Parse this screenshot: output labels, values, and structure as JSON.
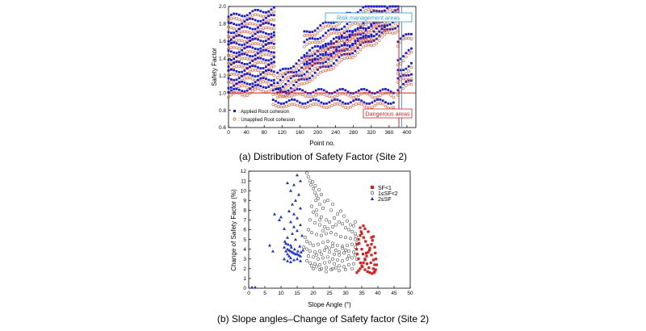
{
  "chart_data": [
    {
      "type": "scatter",
      "caption": "(a) Distribution of Safety Factor (Site 2)",
      "xlabel": "Point no.",
      "ylabel": "Safety Factor",
      "xlim": [
        0,
        420
      ],
      "ylim": [
        0.6,
        2.0
      ],
      "xticks": [
        "0",
        "40",
        "80",
        "120",
        "160",
        "200",
        "240",
        "280",
        "320",
        "360",
        "400"
      ],
      "yticks": [
        "0.6",
        "0.8",
        "1.0",
        "1.2",
        "1.4",
        "1.6",
        "1.8",
        "2.0"
      ],
      "legend_position": "bottom-left",
      "series": [
        {
          "name": ": Applied Root cohesion",
          "color": "#1a1acc",
          "marker": "filled-square"
        },
        {
          "name": ": Unapplied Root cohesion",
          "color": "#d9603b",
          "marker": "open-circle"
        }
      ],
      "annotations": [
        {
          "text": "Risk management areas",
          "color": "#2a9fd0"
        },
        {
          "text": "Dangerous areas",
          "color": "#d62020"
        }
      ],
      "reference_lines": [
        {
          "axis": "y",
          "value": 1.0,
          "color": "#d62020"
        },
        {
          "axis": "x",
          "value": 382,
          "color": "#d62020"
        },
        {
          "axis": "x",
          "value": 388,
          "color": "#2a9fd0"
        }
      ],
      "bands": [
        {
          "start": 0,
          "end": 105,
          "slope": 0.0009,
          "base": [
            1.88,
            1.79,
            1.71,
            1.62,
            1.55,
            1.47,
            1.4,
            1.32,
            1.24,
            1.16,
            1.08,
            1.01
          ]
        },
        {
          "start": 100,
          "end": 375,
          "slope": 0.0,
          "base": [
            1.02,
            0.9
          ]
        },
        {
          "start": 110,
          "end": 380,
          "slope": 0.003,
          "base": [
            0.98,
            1.06,
            1.14,
            1.22
          ]
        },
        {
          "start": 170,
          "end": 350,
          "slope": 0.0022,
          "base": [
            1.34,
            1.46,
            1.58,
            1.69
          ]
        },
        {
          "start": 380,
          "end": 415,
          "slope": 0.003,
          "base": [
            1.05,
            1.15,
            1.25,
            1.4,
            1.6
          ]
        }
      ]
    },
    {
      "type": "scatter",
      "caption": "(b) Slope angles–Change of Safety factor (Site 2)",
      "xlabel": "Slope Angle (°)",
      "ylabel": "Change of Safety Factor (%)",
      "xlim": [
        0,
        50
      ],
      "ylim": [
        0,
        12
      ],
      "xticks": [
        "0",
        "5",
        "10",
        "15",
        "20",
        "25",
        "30",
        "35",
        "40",
        "45",
        "50"
      ],
      "yticks": [
        "0",
        "1",
        "2",
        "3",
        "4",
        "5",
        "6",
        "7",
        "8",
        "9",
        "10",
        "11",
        "12"
      ],
      "legend_position": "top-right",
      "series": [
        {
          "name": "SF<1",
          "color": "#d62020",
          "marker": "filled-square"
        },
        {
          "name": "1≤SF<2",
          "color": "#555555",
          "marker": "open-circle"
        },
        {
          "name": "2≤SF",
          "color": "#1a2fd0",
          "marker": "filled-triangle"
        }
      ],
      "points_sf_lt1": [
        [
          33.5,
          1.6
        ],
        [
          34.0,
          1.8
        ],
        [
          34.5,
          2.0
        ],
        [
          35.0,
          2.3
        ],
        [
          35.5,
          2.6
        ],
        [
          36.0,
          2.9
        ],
        [
          36.5,
          3.3
        ],
        [
          37.0,
          3.7
        ],
        [
          37.5,
          4.1
        ],
        [
          38.0,
          4.5
        ],
        [
          38.3,
          4.9
        ],
        [
          38.6,
          5.3
        ],
        [
          39.0,
          4.2
        ],
        [
          39.2,
          3.6
        ],
        [
          39.4,
          3.0
        ],
        [
          39.6,
          2.4
        ],
        [
          39.3,
          1.9
        ],
        [
          38.8,
          1.6
        ],
        [
          38.2,
          1.5
        ],
        [
          37.5,
          1.6
        ],
        [
          36.8,
          1.7
        ],
        [
          36.0,
          1.9
        ],
        [
          35.2,
          2.2
        ],
        [
          34.6,
          2.6
        ],
        [
          34.0,
          3.0
        ],
        [
          33.6,
          3.5
        ],
        [
          33.4,
          4.0
        ],
        [
          33.6,
          4.5
        ],
        [
          34.0,
          5.0
        ],
        [
          34.5,
          5.4
        ],
        [
          35.0,
          5.6
        ],
        [
          35.6,
          5.2
        ],
        [
          36.2,
          4.8
        ],
        [
          36.8,
          4.4
        ],
        [
          37.4,
          3.9
        ],
        [
          38.0,
          3.4
        ],
        [
          38.6,
          2.9
        ],
        [
          39.0,
          2.4
        ],
        [
          35.0,
          4.0
        ],
        [
          35.4,
          3.5
        ],
        [
          36.0,
          3.0
        ],
        [
          36.6,
          2.5
        ],
        [
          37.2,
          2.1
        ],
        [
          34.2,
          4.6
        ],
        [
          34.8,
          5.8
        ],
        [
          36.0,
          6.1
        ],
        [
          35.5,
          6.4
        ],
        [
          34.5,
          6.2
        ],
        [
          37.0,
          5.8
        ],
        [
          38.0,
          5.2
        ],
        [
          38.6,
          2.0
        ],
        [
          39.0,
          1.7
        ],
        [
          37.8,
          2.6
        ],
        [
          36.4,
          3.6
        ]
      ],
      "points_sf_1to2": [
        [
          18.0,
          11.8
        ],
        [
          18.5,
          11.4
        ],
        [
          19.0,
          11.0
        ],
        [
          19.3,
          10.6
        ],
        [
          20.0,
          10.2
        ],
        [
          20.5,
          9.8
        ],
        [
          21.0,
          9.5
        ],
        [
          21.5,
          9.2
        ],
        [
          20.8,
          9.0
        ],
        [
          22.0,
          8.6
        ],
        [
          19.5,
          8.4
        ],
        [
          23.0,
          8.2
        ],
        [
          20.0,
          7.8
        ],
        [
          21.0,
          7.5
        ],
        [
          22.5,
          7.3
        ],
        [
          24.0,
          7.0
        ],
        [
          25.0,
          6.8
        ],
        [
          19.0,
          7.0
        ],
        [
          20.5,
          6.7
        ],
        [
          22.0,
          6.5
        ],
        [
          23.5,
          6.3
        ],
        [
          26.0,
          6.3
        ],
        [
          27.0,
          6.5
        ],
        [
          28.0,
          6.8
        ],
        [
          29.0,
          6.6
        ],
        [
          30.0,
          6.2
        ],
        [
          31.0,
          6.0
        ],
        [
          32.0,
          5.8
        ],
        [
          33.0,
          5.6
        ],
        [
          18.5,
          6.0
        ],
        [
          19.5,
          5.7
        ],
        [
          21.0,
          5.5
        ],
        [
          22.5,
          5.4
        ],
        [
          24.0,
          5.6
        ],
        [
          25.5,
          5.7
        ],
        [
          27.0,
          5.5
        ],
        [
          28.5,
          5.3
        ],
        [
          30.0,
          5.2
        ],
        [
          31.5,
          5.1
        ],
        [
          33.0,
          5.0
        ],
        [
          17.5,
          5.2
        ],
        [
          18.0,
          4.8
        ],
        [
          19.0,
          4.6
        ],
        [
          20.0,
          4.4
        ],
        [
          21.5,
          4.5
        ],
        [
          23.0,
          4.7
        ],
        [
          24.5,
          4.8
        ],
        [
          26.0,
          4.6
        ],
        [
          27.5,
          4.4
        ],
        [
          29.0,
          4.3
        ],
        [
          30.5,
          4.4
        ],
        [
          32.0,
          4.5
        ],
        [
          33.0,
          4.2
        ],
        [
          17.0,
          4.2
        ],
        [
          18.0,
          4.0
        ],
        [
          19.0,
          3.8
        ],
        [
          20.5,
          3.7
        ],
        [
          22.0,
          3.8
        ],
        [
          23.5,
          3.9
        ],
        [
          25.0,
          3.7
        ],
        [
          26.5,
          3.5
        ],
        [
          28.0,
          3.4
        ],
        [
          29.5,
          3.6
        ],
        [
          31.0,
          3.8
        ],
        [
          32.5,
          3.7
        ],
        [
          18.5,
          3.3
        ],
        [
          20.0,
          3.2
        ],
        [
          21.5,
          3.0
        ],
        [
          23.0,
          3.1
        ],
        [
          24.5,
          3.2
        ],
        [
          26.0,
          3.0
        ],
        [
          27.5,
          2.9
        ],
        [
          29.0,
          2.8
        ],
        [
          30.5,
          3.0
        ],
        [
          32.0,
          3.1
        ],
        [
          33.5,
          3.0
        ],
        [
          19.0,
          2.6
        ],
        [
          20.5,
          2.5
        ],
        [
          22.0,
          2.4
        ],
        [
          23.5,
          2.6
        ],
        [
          25.0,
          2.7
        ],
        [
          26.5,
          2.5
        ],
        [
          28.0,
          2.3
        ],
        [
          29.5,
          2.2
        ],
        [
          31.0,
          2.4
        ],
        [
          32.5,
          2.5
        ],
        [
          20.0,
          2.0
        ],
        [
          22.0,
          1.9
        ],
        [
          24.0,
          2.1
        ],
        [
          26.0,
          2.0
        ],
        [
          28.0,
          1.8
        ],
        [
          30.0,
          1.9
        ],
        [
          32.0,
          2.0
        ],
        [
          21.0,
          8.0
        ],
        [
          22.0,
          7.0
        ],
        [
          23.0,
          5.9
        ],
        [
          24.5,
          6.1
        ],
        [
          26.5,
          7.2
        ],
        [
          27.5,
          7.6
        ],
        [
          28.5,
          7.9
        ],
        [
          29.5,
          7.4
        ],
        [
          30.5,
          6.9
        ],
        [
          31.5,
          6.5
        ],
        [
          32.5,
          6.4
        ],
        [
          33.0,
          6.8
        ],
        [
          25.5,
          8.0
        ],
        [
          26.0,
          8.6
        ],
        [
          24.5,
          9.0
        ],
        [
          23.5,
          8.9
        ],
        [
          22.5,
          9.6
        ],
        [
          21.8,
          10.1
        ],
        [
          20.6,
          10.5
        ],
        [
          19.8,
          10.9
        ],
        [
          24.0,
          4.2
        ],
        [
          25.0,
          4.1
        ],
        [
          26.0,
          4.3
        ],
        [
          27.0,
          3.9
        ],
        [
          28.0,
          3.7
        ],
        [
          29.0,
          4.1
        ],
        [
          30.0,
          3.9
        ],
        [
          31.0,
          3.3
        ],
        [
          21.0,
          3.4
        ],
        [
          22.5,
          3.5
        ],
        [
          18.0,
          2.8
        ],
        [
          19.5,
          2.3
        ],
        [
          21.0,
          2.2
        ],
        [
          22.5,
          2.0
        ],
        [
          24.0,
          1.7
        ],
        [
          25.5,
          1.9
        ],
        [
          27.0,
          2.1
        ],
        [
          33.0,
          3.4
        ],
        [
          33.5,
          4.6
        ],
        [
          33.2,
          5.3
        ]
      ],
      "points_sf_ge2": [
        [
          15.0,
          11.6
        ],
        [
          16.0,
          11.0
        ],
        [
          12.0,
          10.8
        ],
        [
          14.0,
          10.6
        ],
        [
          13.0,
          10.0
        ],
        [
          15.5,
          9.6
        ],
        [
          14.5,
          9.0
        ],
        [
          13.5,
          8.6
        ],
        [
          16.0,
          8.2
        ],
        [
          12.5,
          7.9
        ],
        [
          14.0,
          7.6
        ],
        [
          8.0,
          7.6
        ],
        [
          10.0,
          7.3
        ],
        [
          15.0,
          7.2
        ],
        [
          9.5,
          7.0
        ],
        [
          13.0,
          6.8
        ],
        [
          16.0,
          6.5
        ],
        [
          14.0,
          6.3
        ],
        [
          11.0,
          6.1
        ],
        [
          15.0,
          5.9
        ],
        [
          13.5,
          5.6
        ],
        [
          16.5,
          5.4
        ],
        [
          12.0,
          5.2
        ],
        [
          14.5,
          5.0
        ],
        [
          11.5,
          4.6
        ],
        [
          13.0,
          4.4
        ],
        [
          11.0,
          4.2
        ],
        [
          12.0,
          4.0
        ],
        [
          12.5,
          3.9
        ],
        [
          13.0,
          3.8
        ],
        [
          13.5,
          3.7
        ],
        [
          14.0,
          3.6
        ],
        [
          14.5,
          3.5
        ],
        [
          15.0,
          3.5
        ],
        [
          15.5,
          3.4
        ],
        [
          16.0,
          3.3
        ],
        [
          11.5,
          3.8
        ],
        [
          12.0,
          3.5
        ],
        [
          12.5,
          3.3
        ],
        [
          13.0,
          3.1
        ],
        [
          11.0,
          3.0
        ],
        [
          12.0,
          2.8
        ],
        [
          13.0,
          2.7
        ],
        [
          14.0,
          2.9
        ],
        [
          15.0,
          3.0
        ],
        [
          16.0,
          2.8
        ],
        [
          7.5,
          3.8
        ],
        [
          6.5,
          4.4
        ],
        [
          11.2,
          4.8
        ],
        [
          12.2,
          4.5
        ],
        [
          13.2,
          4.2
        ],
        [
          14.2,
          4.0
        ],
        [
          15.2,
          3.8
        ],
        [
          16.2,
          3.7
        ],
        [
          16.8,
          3.9
        ],
        [
          15.8,
          4.3
        ],
        [
          1.0,
          0.1
        ],
        [
          2.0,
          0.1
        ]
      ]
    }
  ]
}
